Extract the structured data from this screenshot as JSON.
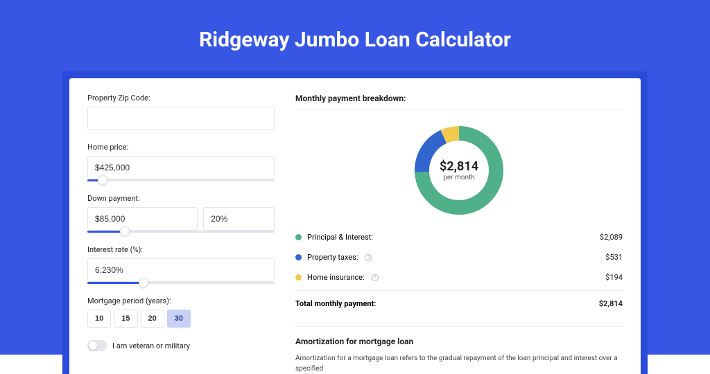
{
  "page": {
    "title": "Ridgeway Jumbo Loan Calculator",
    "background_color": "#3756e4",
    "shadow_color": "#2a4ad9"
  },
  "form": {
    "zip": {
      "label": "Property Zip Code:",
      "value": ""
    },
    "home_price": {
      "label": "Home price:",
      "value": "$425,000",
      "slider_pct": 8
    },
    "down_payment": {
      "label": "Down payment:",
      "value": "$85,000",
      "pct_value": "20%",
      "slider_pct": 20
    },
    "interest": {
      "label": "Interest rate (%):",
      "value": "6.230%",
      "slider_pct": 30
    },
    "period": {
      "label": "Mortgage period (years):",
      "options": [
        "10",
        "15",
        "20",
        "30"
      ],
      "selected_index": 3
    },
    "veteran": {
      "label": "I am veteran or military",
      "on": false
    }
  },
  "breakdown": {
    "heading": "Monthly payment breakdown:",
    "donut": {
      "center_value": "$2,814",
      "center_sub": "per month",
      "thickness": 21,
      "segments": [
        {
          "key": "principal_interest",
          "color": "#4fb08a",
          "pct": 74.2
        },
        {
          "key": "property_taxes",
          "color": "#3366cc",
          "pct": 18.9
        },
        {
          "key": "home_insurance",
          "color": "#f2c94c",
          "pct": 6.9
        }
      ]
    },
    "rows": [
      {
        "label": "Principal & Interest:",
        "value": "$2,089",
        "color": "#4fb08a",
        "info": false
      },
      {
        "label": "Property taxes:",
        "value": "$531",
        "color": "#3366cc",
        "info": true
      },
      {
        "label": "Home insurance:",
        "value": "$194",
        "color": "#f2c94c",
        "info": true
      }
    ],
    "total": {
      "label": "Total monthly payment:",
      "value": "$2,814"
    }
  },
  "amortization": {
    "heading": "Amortization for mortgage loan",
    "text": "Amortization for a mortgage loan refers to the gradual repayment of the loan principal and interest over a specified"
  }
}
